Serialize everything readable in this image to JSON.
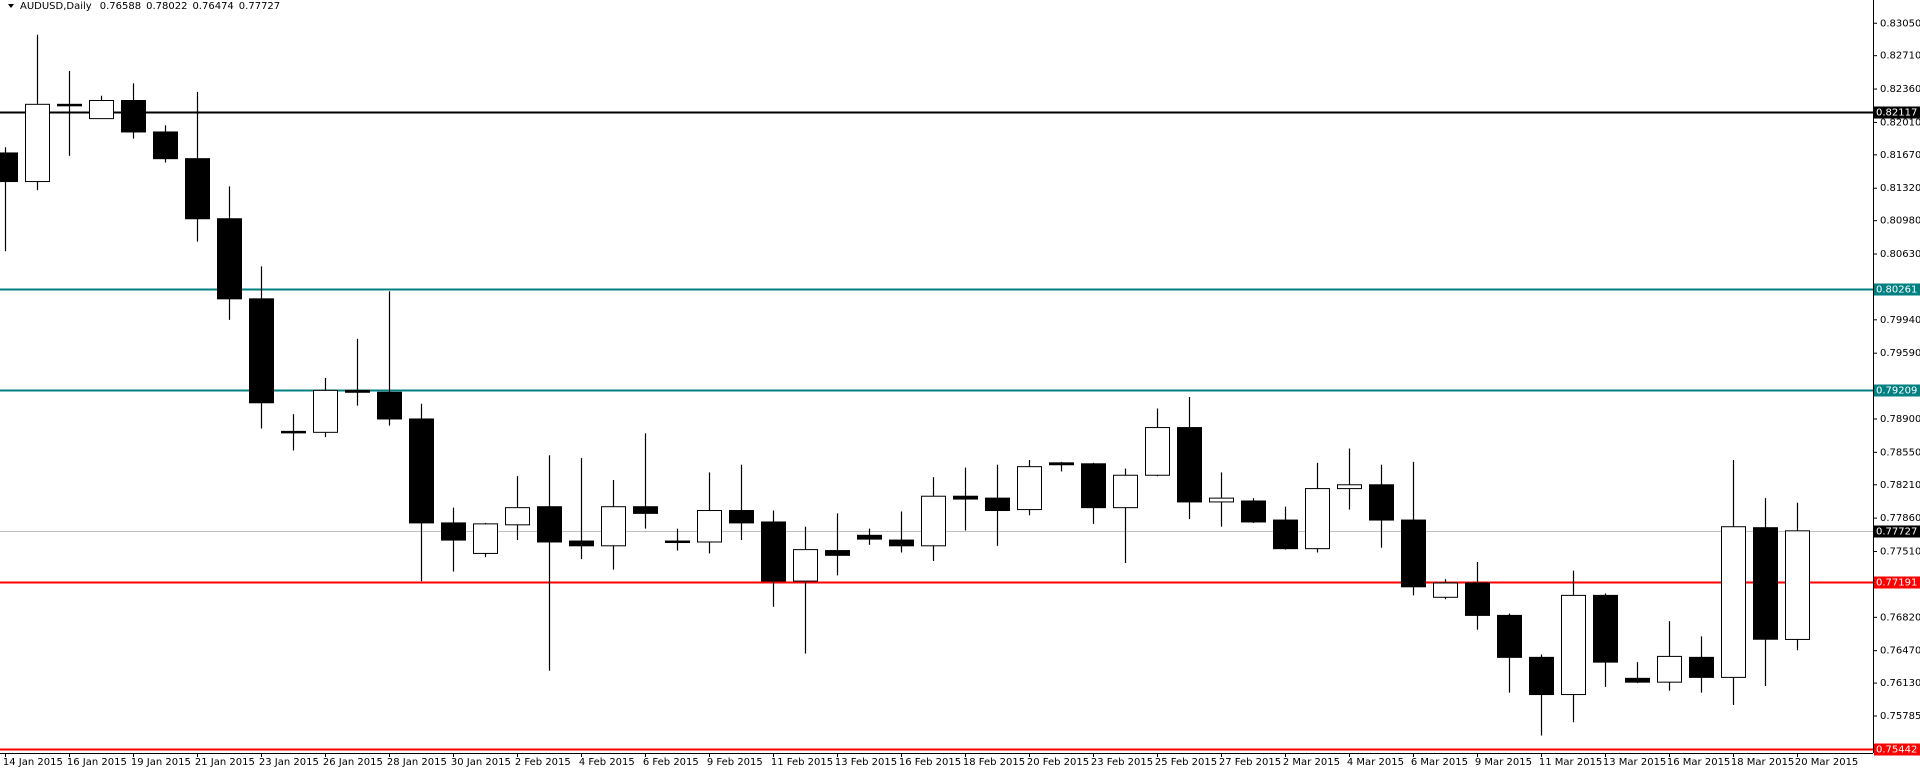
{
  "chart_data": {
    "type": "candlestick",
    "title": "AUDUSD,Daily",
    "categories": [
      "14 Jan 2015",
      null,
      "16 Jan 2015",
      null,
      "19 Jan 2015",
      null,
      "21 Jan 2015",
      null,
      "23 Jan 2015",
      null,
      "26 Jan 2015",
      null,
      "28 Jan 2015",
      null,
      "30 Jan 2015",
      null,
      "2 Feb 2015",
      null,
      "4 Feb 2015",
      null,
      "6 Feb 2015",
      null,
      "9 Feb 2015",
      null,
      "11 Feb 2015",
      null,
      "13 Feb 2015",
      null,
      "16 Feb 2015",
      null,
      "18 Feb 2015",
      null,
      "20 Feb 2015",
      null,
      "23 Feb 2015",
      null,
      "25 Feb 2015",
      null,
      "27 Feb 2015",
      null,
      "2 Mar 2015",
      null,
      "4 Mar 2015",
      null,
      "6 Mar 2015",
      null,
      "9 Mar 2015",
      null,
      "11 Mar 2015",
      null,
      "13 Mar 2015",
      null,
      "16 Mar 2015",
      null,
      "18 Mar 2015",
      null,
      "20 Mar 2015"
    ],
    "open": [
      0.8169,
      0.8139,
      0.822,
      0.8205,
      0.8224,
      0.8191,
      0.8163,
      0.81,
      0.8016,
      0.7877,
      0.7876,
      0.792,
      0.7918,
      0.789,
      0.7781,
      0.7749,
      0.7779,
      0.7798,
      0.7762,
      0.7757,
      0.7798,
      0.7762,
      0.7761,
      0.7794,
      0.7782,
      0.772,
      0.7752,
      0.7768,
      0.7763,
      0.7757,
      0.7809,
      0.7807,
      0.7795,
      0.7844,
      0.7843,
      0.7797,
      0.7831,
      0.7881,
      0.7803,
      0.7804,
      0.7784,
      0.7754,
      0.7817,
      0.7821,
      0.7784,
      0.7703,
      0.7718,
      0.7684,
      0.764,
      0.7601,
      0.7705,
      0.7618,
      0.7614,
      0.764,
      0.7619,
      0.7776,
      0.76588
    ],
    "high": [
      0.8175,
      0.8293,
      0.8255,
      0.8229,
      0.8242,
      0.8198,
      0.8233,
      0.8134,
      0.805,
      0.7895,
      0.7933,
      0.7974,
      0.8024,
      0.7906,
      0.7797,
      0.7781,
      0.783,
      0.7852,
      0.7849,
      0.7826,
      0.7875,
      0.7775,
      0.7834,
      0.7842,
      0.7794,
      0.7777,
      0.7791,
      0.7775,
      0.7793,
      0.7829,
      0.7839,
      0.7842,
      0.7847,
      0.7845,
      0.7844,
      0.7838,
      0.7901,
      0.7913,
      0.7834,
      0.7807,
      0.7798,
      0.7844,
      0.7859,
      0.7842,
      0.7845,
      0.7722,
      0.774,
      0.7686,
      0.7643,
      0.7731,
      0.7707,
      0.7635,
      0.7678,
      0.7662,
      0.7847,
      0.7807,
      0.78022
    ],
    "low": [
      0.8066,
      0.813,
      0.8166,
      0.8205,
      0.8184,
      0.8159,
      0.8076,
      0.7994,
      0.788,
      0.7857,
      0.7871,
      0.7904,
      0.7883,
      0.772,
      0.773,
      0.7745,
      0.7763,
      0.7626,
      0.7743,
      0.7732,
      0.7775,
      0.7752,
      0.7749,
      0.7763,
      0.7693,
      0.7644,
      0.7726,
      0.7758,
      0.775,
      0.7741,
      0.7773,
      0.7757,
      0.7789,
      0.7835,
      0.778,
      0.7739,
      0.783,
      0.7785,
      0.7777,
      0.7781,
      0.7753,
      0.775,
      0.7795,
      0.7755,
      0.7705,
      0.7701,
      0.7669,
      0.7603,
      0.7558,
      0.7572,
      0.7609,
      0.7613,
      0.7605,
      0.7603,
      0.759,
      0.761,
      0.76474
    ],
    "close": [
      0.8139,
      0.822,
      0.8219,
      0.8224,
      0.8191,
      0.8163,
      0.81,
      0.8016,
      0.7907,
      0.7876,
      0.792,
      0.7918,
      0.789,
      0.7781,
      0.7763,
      0.778,
      0.7797,
      0.7761,
      0.7757,
      0.7798,
      0.7791,
      0.7761,
      0.7794,
      0.7781,
      0.772,
      0.7753,
      0.7747,
      0.7764,
      0.7757,
      0.7809,
      0.7806,
      0.7794,
      0.784,
      0.7842,
      0.7797,
      0.7831,
      0.7881,
      0.7803,
      0.7807,
      0.7782,
      0.7754,
      0.7817,
      0.7821,
      0.7784,
      0.7714,
      0.7718,
      0.7684,
      0.764,
      0.7601,
      0.7705,
      0.7635,
      0.7614,
      0.7641,
      0.7619,
      0.7777,
      0.7659,
      0.77727
    ],
    "up_color": "#ffffff",
    "down_color": "#000000",
    "ylim": [
      0.75397,
      0.83294
    ],
    "yticks": [
      {
        "value": 0.8305,
        "label": "0.83050"
      },
      {
        "value": 0.8271,
        "label": "0.82710"
      },
      {
        "value": 0.8236,
        "label": "0.82360"
      },
      {
        "value": 0.8201,
        "label": "0.82010"
      },
      {
        "value": 0.8167,
        "label": "0.81670"
      },
      {
        "value": 0.8132,
        "label": "0.81320"
      },
      {
        "value": 0.8098,
        "label": "0.80980"
      },
      {
        "value": 0.8063,
        "label": "0.80630"
      },
      {
        "value": 0.7994,
        "label": "0.79940"
      },
      {
        "value": 0.7959,
        "label": "0.79590"
      },
      {
        "value": 0.789,
        "label": "0.78900"
      },
      {
        "value": 0.7855,
        "label": "0.78550"
      },
      {
        "value": 0.7821,
        "label": "0.78210"
      },
      {
        "value": 0.7786,
        "label": "0.77860"
      },
      {
        "value": 0.7751,
        "label": "0.77510"
      },
      {
        "value": 0.7682,
        "label": "0.76820"
      },
      {
        "value": 0.7647,
        "label": "0.76470"
      },
      {
        "value": 0.7613,
        "label": "0.76130"
      },
      0.75785
    ],
    "hlines": [
      {
        "value": 0.82117,
        "color": "#000000",
        "label_color": "#000000"
      },
      {
        "value": 0.80261,
        "color": "#008080",
        "label_color": "#008080"
      },
      {
        "value": 0.79209,
        "color": "#008080",
        "label_color": "#008080"
      },
      {
        "value": 0.77727,
        "color": "#c0c0c0",
        "label_color": "#000000"
      },
      {
        "value": 0.77191,
        "color": "#ff0000",
        "label_color": "#ff0000"
      },
      {
        "value": 0.75442,
        "color": "#ff0000",
        "label_color": "#ff0000"
      }
    ]
  }
}
